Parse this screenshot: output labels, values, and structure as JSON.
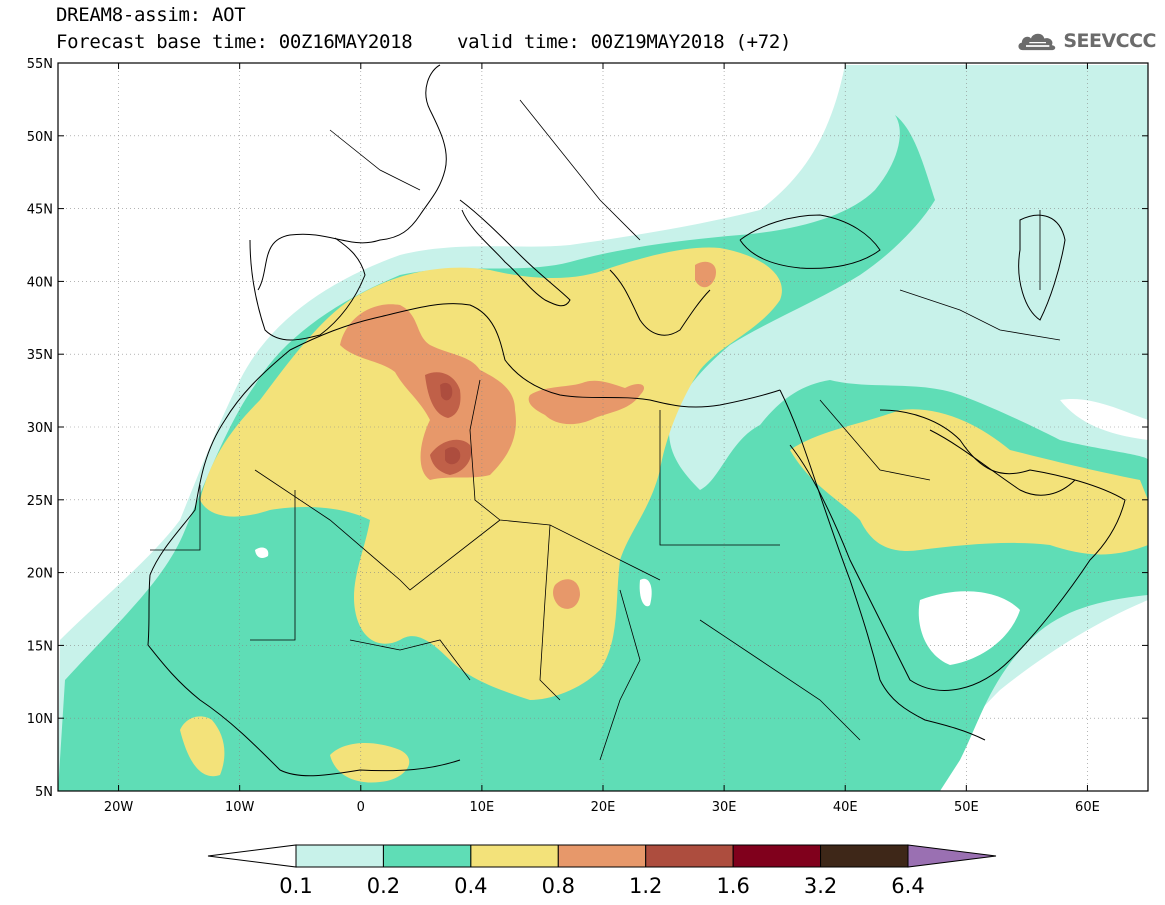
{
  "header": {
    "title": "DREAM8-assim: AOT",
    "subtitle": "Forecast base time: 00Z16MAY2018    valid time: 00Z19MAY2018 (+72)",
    "logo_text": "SEEVCCC"
  },
  "map": {
    "lon_range": [
      -25,
      65
    ],
    "lat_range": [
      5,
      55
    ],
    "lon_ticks": [
      {
        "lon": -20,
        "label": "20W"
      },
      {
        "lon": -10,
        "label": "10W"
      },
      {
        "lon": 0,
        "label": "0"
      },
      {
        "lon": 10,
        "label": "10E"
      },
      {
        "lon": 20,
        "label": "20E"
      },
      {
        "lon": 30,
        "label": "30E"
      },
      {
        "lon": 40,
        "label": "40E"
      },
      {
        "lon": 50,
        "label": "50E"
      },
      {
        "lon": 60,
        "label": "60E"
      }
    ],
    "lat_ticks": [
      {
        "lat": 55,
        "label": "55N"
      },
      {
        "lat": 50,
        "label": "50N"
      },
      {
        "lat": 45,
        "label": "45N"
      },
      {
        "lat": 40,
        "label": "40N"
      },
      {
        "lat": 35,
        "label": "35N"
      },
      {
        "lat": 30,
        "label": "30N"
      },
      {
        "lat": 25,
        "label": "25N"
      },
      {
        "lat": 20,
        "label": "20N"
      },
      {
        "lat": 15,
        "label": "15N"
      },
      {
        "lat": 10,
        "label": "10N"
      },
      {
        "lat": 5,
        "label": "5N"
      }
    ],
    "colors": {
      "c01": "#c8f2ea",
      "c02": "#5fddb6",
      "c04": "#f3e27a",
      "c08": "#e7986a",
      "c12": "#c06048",
      "c16": "#ad4d3e",
      "c32": "#80001c",
      "c64": "#3e2718",
      "over": "#9a70b2"
    }
  },
  "colorbar": {
    "labels": [
      "0.1",
      "0.2",
      "0.4",
      "0.8",
      "1.2",
      "1.6",
      "3.2",
      "6.4"
    ],
    "colors": [
      "#c8f2ea",
      "#5fddb6",
      "#f3e27a",
      "#e7986a",
      "#ad4d3e",
      "#80001c",
      "#3e2718"
    ]
  }
}
